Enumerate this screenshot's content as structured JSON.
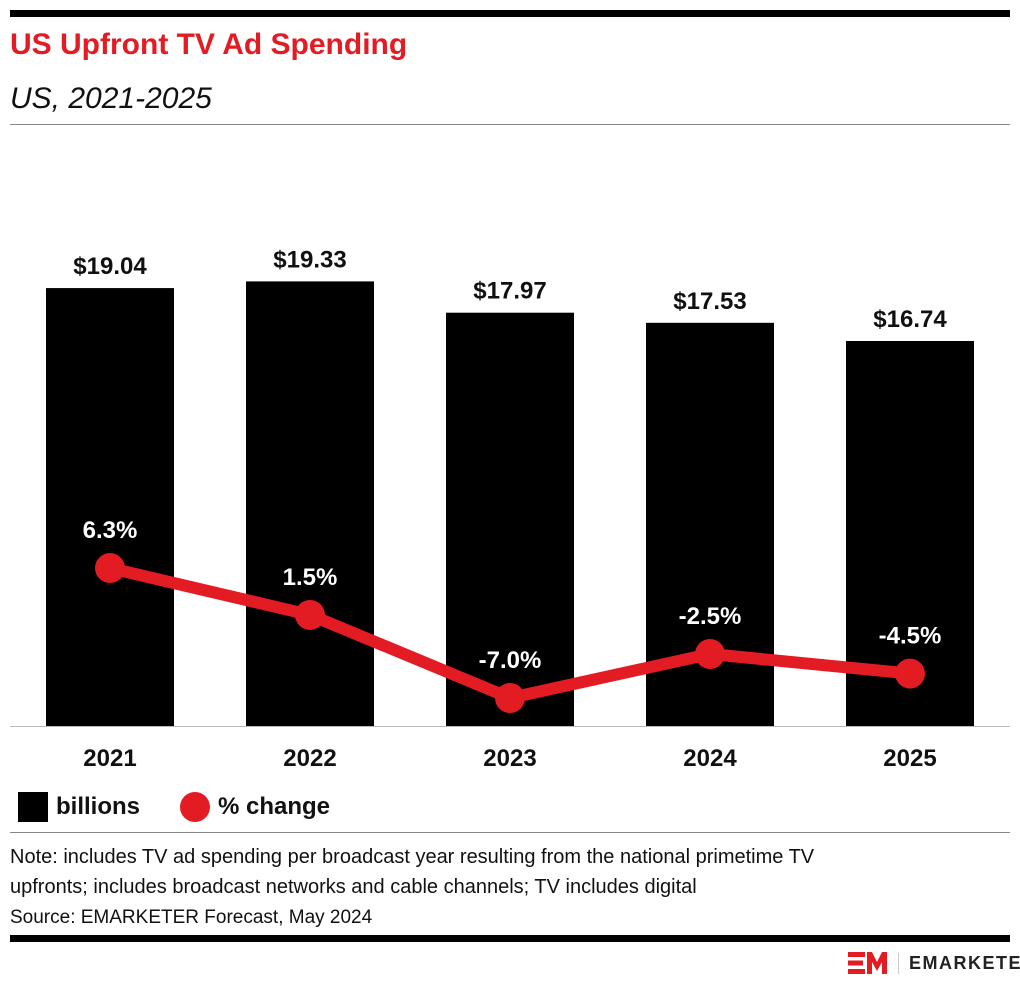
{
  "title": "US Upfront TV Ad Spending",
  "subtitle": "US, 2021-2025",
  "legend": {
    "bars": "billions",
    "line": "% change"
  },
  "note_lines": [
    "Note: includes TV ad spending per broadcast year resulting from the national primetime TV",
    "upfronts; includes broadcast networks and cable channels; TV includes digital"
  ],
  "source": "Source: EMARKETER Forecast, May 2024",
  "logo": {
    "text": "EMARKETER",
    "mark": "EM"
  },
  "colors": {
    "bar": "#000000",
    "line": "#e31b23",
    "title": "#e31b23"
  },
  "chart_data": {
    "type": "bar+line",
    "categories": [
      "2021",
      "2022",
      "2023",
      "2024",
      "2025"
    ],
    "series": [
      {
        "name": "billions",
        "type": "bar",
        "values": [
          19.04,
          19.33,
          17.97,
          17.53,
          16.74
        ],
        "labels": [
          "$19.04",
          "$19.33",
          "$17.97",
          "$17.53",
          "$16.74"
        ]
      },
      {
        "name": "% change",
        "type": "line",
        "values": [
          6.3,
          1.5,
          -7.0,
          -2.5,
          -4.5
        ],
        "labels": [
          "6.3%",
          "1.5%",
          "-7.0%",
          "-2.5%",
          "-4.5%"
        ]
      }
    ],
    "grid": false,
    "legend_position": "bottom-left"
  }
}
